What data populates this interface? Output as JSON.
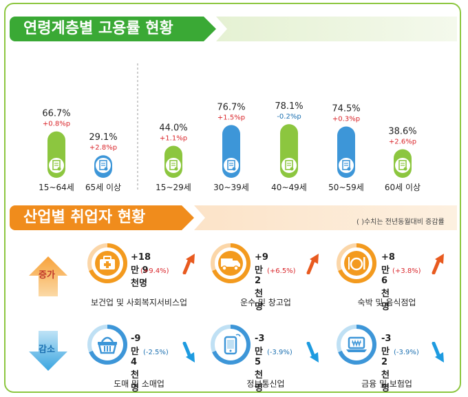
{
  "section1": {
    "title": "연령계층별 고용률 현황"
  },
  "section2": {
    "title": "산업별 취업자 현황",
    "note": "( )수치는 전년동월대비 증감률"
  },
  "colors": {
    "green": "#8cc63f",
    "blue": "#3d96d8",
    "orange": "#f39a1e",
    "up": "#e85a1f",
    "down": "#1e9be0",
    "red": "#d9252a"
  },
  "chart_data": [
    {
      "type": "bar",
      "categories": [
        "15~64세",
        "65세 이상"
      ],
      "series": [
        {
          "values": [
            66.7,
            29.1
          ]
        }
      ],
      "value_labels": [
        "66.7%",
        "29.1%"
      ],
      "change_labels": [
        "+0.8%p",
        "+2.8%p"
      ],
      "bar_colors": [
        "#8cc63f",
        "#3d96d8"
      ],
      "icons": [
        "document-icon",
        "document-search-icon"
      ]
    },
    {
      "type": "bar",
      "categories": [
        "15~29세",
        "30~39세",
        "40~49세",
        "50~59세",
        "60세 이상"
      ],
      "series": [
        {
          "values": [
            44.0,
            76.7,
            78.1,
            74.5,
            38.6
          ]
        }
      ],
      "value_labels": [
        "44.0%",
        "76.7%",
        "78.1%",
        "74.5%",
        "38.6%"
      ],
      "change_labels": [
        "+1.1%p",
        "+1.5%p",
        "-0.2%p",
        "+0.3%p",
        "+2.6%p"
      ],
      "bar_colors": [
        "#8cc63f",
        "#3d96d8",
        "#8cc63f",
        "#3d96d8",
        "#8cc63f"
      ],
      "icons": [
        "document-icon",
        "document-search-icon",
        "document-icon",
        "document-search-icon",
        "document-icon"
      ]
    }
  ],
  "industries": {
    "increase_label": "증가",
    "decrease_label": "감소",
    "increase": [
      {
        "name": "보건업 및 사회복지서비스업",
        "change": "+18만 9천명",
        "rate": "(+9.4%)",
        "icon": "first-aid-kit-icon"
      },
      {
        "name": "운수 및 창고업",
        "change": "+9만 2천명",
        "rate": "(+6.5%)",
        "icon": "truck-icon"
      },
      {
        "name": "숙박 및 음식점업",
        "change": "+8만 6천명",
        "rate": "(+3.8%)",
        "icon": "dining-icon"
      }
    ],
    "decrease": [
      {
        "name": "도매 및 소매업",
        "change": "-9만 4천명",
        "rate": "(-2.5%)",
        "icon": "shopping-basket-icon"
      },
      {
        "name": "정보통신업",
        "change": "-3만 5천명",
        "rate": "(-3.9%)",
        "icon": "mobile-phone-icon"
      },
      {
        "name": "금융 및 보험업",
        "change": "-3만 2천명",
        "rate": "(-3.9%)",
        "icon": "laptop-won-icon"
      }
    ]
  }
}
